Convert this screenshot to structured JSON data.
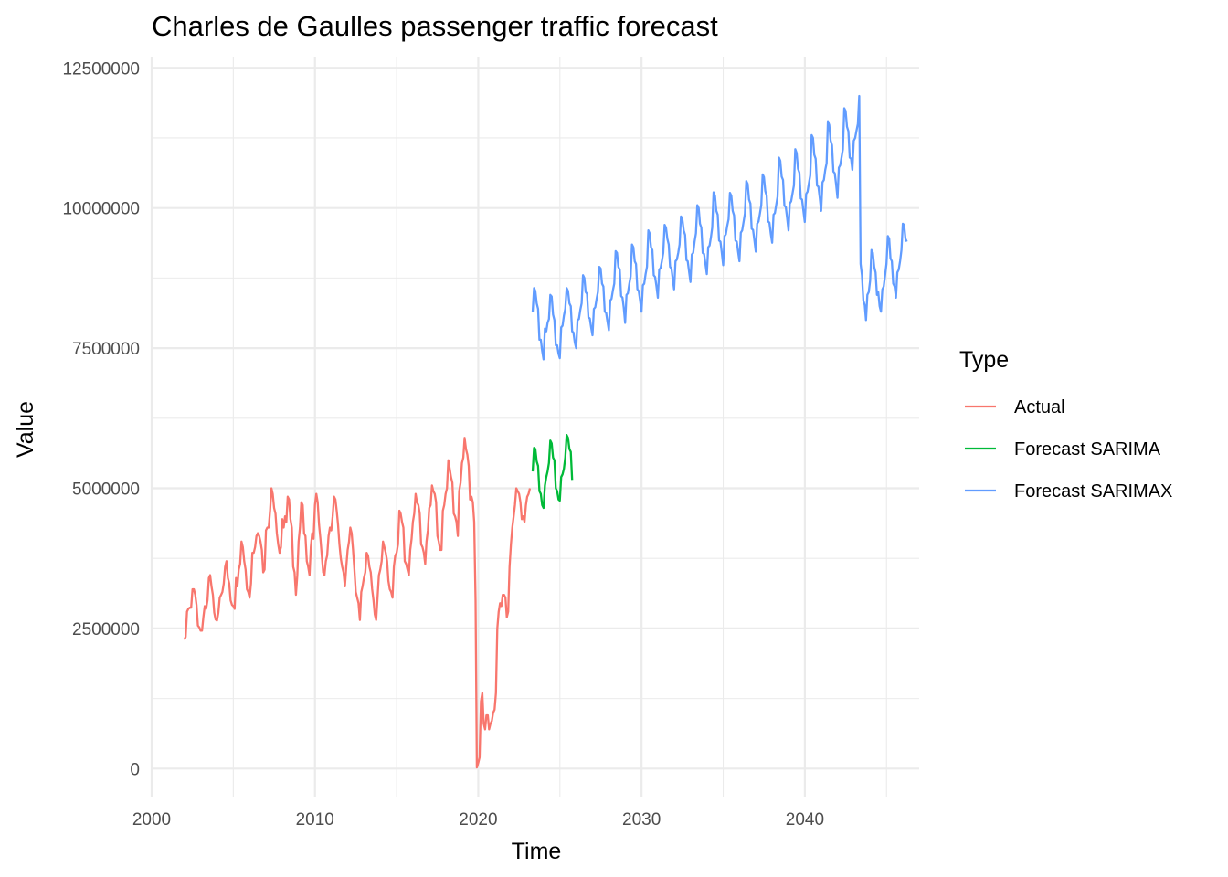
{
  "chart_data": {
    "type": "line",
    "title": "Charles de Gaulles passenger traffic forecast",
    "xlabel": "Time",
    "ylabel": "Value",
    "xlim": [
      2000,
      2047
    ],
    "ylim": [
      -500000,
      12700000
    ],
    "x_ticks": [
      2000,
      2010,
      2020,
      2030,
      2040
    ],
    "y_ticks": [
      0,
      2500000,
      5000000,
      7500000,
      10000000,
      12500000
    ],
    "x_tick_labels": [
      "2000",
      "2010",
      "2020",
      "2030",
      "2040"
    ],
    "y_tick_labels": [
      "0",
      "2500000",
      "5000000",
      "7500000",
      "10000000",
      "12500000"
    ],
    "grid": true,
    "legend": {
      "title": "Type",
      "position": "right"
    },
    "series": [
      {
        "name": "Actual",
        "color": "#F8766D",
        "x_start": 2002.0,
        "step": 0.08333,
        "values": [
          2300000,
          2350000,
          2800000,
          2850000,
          2870000,
          2870000,
          3200000,
          3200000,
          3100000,
          2920000,
          2550000,
          2520000,
          2460000,
          2460000,
          2700000,
          2900000,
          2850000,
          3000000,
          3400000,
          3450000,
          3250000,
          3100000,
          2780000,
          2660000,
          2640000,
          2780000,
          3050000,
          3100000,
          3150000,
          3300000,
          3600000,
          3700000,
          3400000,
          3300000,
          3000000,
          2920000,
          2900000,
          2850000,
          3400000,
          3250000,
          3550000,
          3650000,
          4050000,
          3950000,
          3700000,
          3550000,
          3200000,
          3150000,
          3050000,
          3300000,
          3850000,
          3850000,
          3950000,
          4150000,
          4200000,
          4150000,
          4050000,
          3900000,
          3500000,
          3550000,
          4250000,
          4300000,
          4300000,
          4600000,
          5000000,
          4900000,
          4650000,
          4550000,
          4200000,
          4000000,
          3850000,
          3950000,
          4450000,
          4300000,
          4500000,
          4400000,
          4850000,
          4800000,
          4450000,
          4300000,
          3600000,
          3500000,
          3100000,
          3450000,
          4050000,
          4300000,
          4750000,
          4700000,
          4200000,
          4150000,
          3700000,
          3600000,
          3450000,
          3950000,
          4200000,
          4100000,
          4700000,
          4900000,
          4750000,
          4350000,
          4100000,
          3800000,
          3500000,
          3450000,
          3700000,
          3800000,
          4150000,
          4300000,
          4250000,
          4500000,
          4850000,
          4800000,
          4600000,
          4350000,
          4000000,
          3750000,
          3600000,
          3500000,
          3250000,
          3600000,
          3900000,
          4050000,
          4300000,
          4200000,
          3900000,
          3550000,
          3150000,
          3050000,
          2950000,
          2650000,
          3150000,
          3250000,
          3400000,
          3500000,
          3850000,
          3800000,
          3600000,
          3500000,
          3200000,
          3000000,
          2750000,
          2650000,
          3050000,
          3450000,
          3550000,
          3700000,
          4050000,
          3950000,
          3850000,
          3700000,
          3350000,
          3200000,
          3150000,
          3050000,
          3600000,
          3800000,
          3850000,
          4000000,
          4600000,
          4550000,
          4400000,
          4300000,
          3700000,
          3650000,
          3550000,
          3450000,
          3900000,
          4100000,
          4400000,
          4550000,
          4900000,
          4750000,
          4700000,
          4550000,
          4000000,
          3950000,
          3850000,
          3650000,
          4050000,
          4250000,
          4650000,
          4700000,
          5050000,
          4950000,
          4900000,
          4750000,
          4150000,
          4050000,
          3900000,
          3900000,
          4600000,
          4700000,
          4900000,
          5000000,
          5500000,
          5350000,
          5200000,
          5100000,
          4550000,
          4500000,
          4400000,
          4150000,
          4950000,
          5100000,
          5450000,
          5550000,
          5900000,
          5700000,
          5600000,
          5400000,
          4800000,
          4850000,
          4750000,
          4400000,
          3000000,
          20000,
          100000,
          200000,
          1200000,
          1350000,
          800000,
          700000,
          950000,
          950000,
          700000,
          800000,
          850000,
          1000000,
          1050000,
          1350000,
          2500000,
          2800000,
          2950000,
          2900000,
          3100000,
          3100000,
          3050000,
          2700000,
          2800000,
          3600000,
          4000000,
          4300000,
          4500000,
          4700000,
          5000000,
          4950000,
          4900000,
          4750000,
          4450000,
          4500000,
          4400000,
          4700000,
          4850000,
          4900000,
          5000000
        ]
      },
      {
        "name": "Forecast SARIMA",
        "color": "#00BA38",
        "x_start": 2023.33,
        "step": 0.08333,
        "values": [
          5300000,
          5720000,
          5700000,
          5480000,
          5400000,
          4950000,
          4900000,
          4700000,
          4650000,
          5050000,
          5200000,
          5300000,
          5450000,
          5850000,
          5800000,
          5550000,
          5500000,
          5000000,
          4950000,
          4800000,
          4780000,
          5200000,
          5250000,
          5350000,
          5550000,
          5950000,
          5900000,
          5700000,
          5650000,
          5150000
        ]
      },
      {
        "name": "Forecast SARIMAX",
        "color": "#619CFF",
        "x_start": 2023.33,
        "step": 0.08333,
        "values": [
          8150000,
          8570000,
          8520000,
          8300000,
          8200000,
          7650000,
          7650000,
          7450000,
          7300000,
          7850000,
          7800000,
          7950000,
          8020000,
          8450000,
          8420000,
          8100000,
          8000000,
          7550000,
          7550000,
          7400000,
          7320000,
          7870000,
          7900000,
          8080000,
          8200000,
          8570000,
          8520000,
          8300000,
          8250000,
          7800000,
          7780000,
          7600000,
          7500000,
          8000000,
          8020000,
          8180000,
          8300000,
          8800000,
          8750000,
          8500000,
          8470000,
          8050000,
          8030000,
          7870000,
          7730000,
          8200000,
          8230000,
          8380000,
          8500000,
          8950000,
          8920000,
          8650000,
          8600000,
          8150000,
          8130000,
          7970000,
          7820000,
          8350000,
          8380000,
          8530000,
          8650000,
          9230000,
          9200000,
          8950000,
          8900000,
          8430000,
          8400000,
          8220000,
          7950000,
          8450000,
          8480000,
          8640000,
          8780000,
          9350000,
          9300000,
          9050000,
          9000000,
          8550000,
          8520000,
          8350000,
          8150000,
          8620000,
          8650000,
          8820000,
          8950000,
          9600000,
          9550000,
          9300000,
          9250000,
          8800000,
          8770000,
          8600000,
          8400000,
          8900000,
          8930000,
          9050000,
          9200000,
          9700000,
          9650000,
          9450000,
          9350000,
          8950000,
          8920000,
          8720000,
          8550000,
          9050000,
          9080000,
          9200000,
          9350000,
          9850000,
          9800000,
          9600000,
          9520000,
          9070000,
          9050000,
          8860000,
          8680000,
          9170000,
          9200000,
          9400000,
          9550000,
          10050000,
          10000000,
          9720000,
          9650000,
          9200000,
          9180000,
          9000000,
          8820000,
          9300000,
          9330000,
          9480000,
          9650000,
          10280000,
          10220000,
          9950000,
          9880000,
          9420000,
          9400000,
          9200000,
          8980000,
          9500000,
          9530000,
          9680000,
          9800000,
          10270000,
          10220000,
          9950000,
          9870000,
          9420000,
          9400000,
          9220000,
          9050000,
          9560000,
          9600000,
          9750000,
          9900000,
          10480000,
          10430000,
          10150000,
          10080000,
          9630000,
          9610000,
          9420000,
          9220000,
          9720000,
          9760000,
          9900000,
          10050000,
          10600000,
          10550000,
          10300000,
          10220000,
          9760000,
          9740000,
          9540000,
          9380000,
          9880000,
          9910000,
          10050000,
          10200000,
          10900000,
          10840000,
          10560000,
          10500000,
          10040000,
          10020000,
          9820000,
          9600000,
          10080000,
          10120000,
          10260000,
          10400000,
          11050000,
          10980000,
          10700000,
          10630000,
          10170000,
          10150000,
          9950000,
          9750000,
          10250000,
          10290000,
          10440000,
          10580000,
          11300000,
          11250000,
          10950000,
          10880000,
          10400000,
          10380000,
          10180000,
          9950000,
          10460000,
          10500000,
          10680000,
          10800000,
          11550000,
          11480000,
          11200000,
          11120000,
          10650000,
          10620000,
          10420000,
          10180000,
          10720000,
          10760000,
          10900000,
          11050000,
          11780000,
          11730000,
          11450000,
          11370000,
          10900000,
          10880000,
          10680000,
          11200000,
          11250000,
          11380000,
          11500000,
          12000000,
          9000000,
          8800000,
          8350000,
          8270000,
          8000000,
          8450000,
          8500000,
          8700000,
          9250000,
          9200000,
          8950000,
          8850000,
          8450000,
          8500000,
          8250000,
          8150000,
          8550000,
          8600000,
          8800000,
          9000000,
          9500000,
          9450000,
          9100000,
          9050000,
          8650000,
          8600000,
          8400000,
          8850000,
          8900000,
          9050000,
          9250000,
          9720000,
          9700000,
          9450000,
          9400000
        ]
      }
    ]
  }
}
